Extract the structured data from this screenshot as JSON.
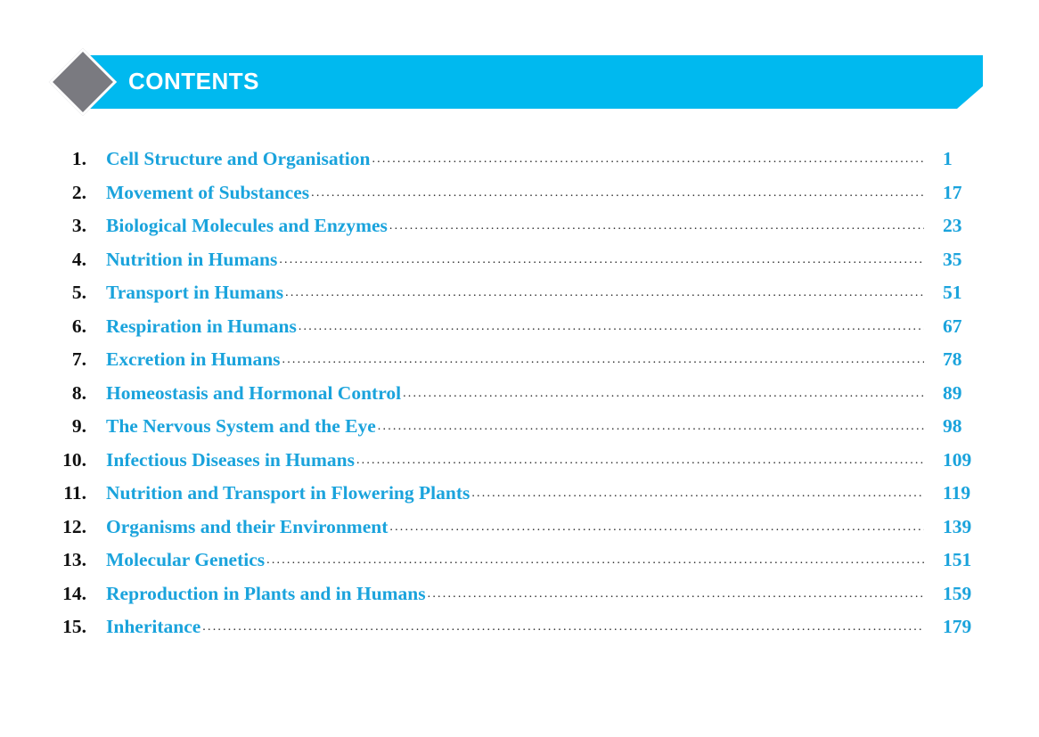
{
  "header": {
    "title": "CONTENTS",
    "accent": "#00b9ef",
    "diamond_color": "#7a7a80"
  },
  "entries": [
    {
      "num": "1.",
      "title": "Cell Structure and Organisation",
      "page": "1"
    },
    {
      "num": "2.",
      "title": "Movement of Substances",
      "page": "17"
    },
    {
      "num": "3.",
      "title": "Biological Molecules and Enzymes",
      "page": "23"
    },
    {
      "num": "4.",
      "title": "Nutrition in Humans",
      "page": "35"
    },
    {
      "num": "5.",
      "title": "Transport in Humans",
      "page": "51"
    },
    {
      "num": "6.",
      "title": "Respiration in Humans",
      "page": "67"
    },
    {
      "num": "7.",
      "title": "Excretion in Humans",
      "page": "78"
    },
    {
      "num": "8.",
      "title": "Homeostasis and Hormonal Control",
      "page": "89"
    },
    {
      "num": "9.",
      "title": "The Nervous System and the Eye",
      "page": "98"
    },
    {
      "num": "10.",
      "title": "Infectious Diseases in Humans",
      "page": "109"
    },
    {
      "num": "11.",
      "title": "Nutrition and Transport in Flowering Plants",
      "page": "119"
    },
    {
      "num": "12.",
      "title": "Organisms and their Environment",
      "page": "139"
    },
    {
      "num": "13.",
      "title": "Molecular Genetics",
      "page": "151"
    },
    {
      "num": "14.",
      "title": "Reproduction in Plants and in Humans",
      "page": "159"
    },
    {
      "num": "15.",
      "title": "Inheritance",
      "page": "179"
    }
  ]
}
